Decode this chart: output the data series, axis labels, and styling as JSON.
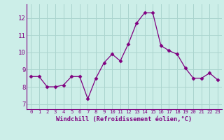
{
  "x": [
    0,
    1,
    2,
    3,
    4,
    5,
    6,
    7,
    8,
    9,
    10,
    11,
    12,
    13,
    14,
    15,
    16,
    17,
    18,
    19,
    20,
    21,
    22,
    23
  ],
  "y": [
    8.6,
    8.6,
    8.0,
    8.0,
    8.1,
    8.6,
    8.6,
    7.3,
    8.5,
    9.4,
    9.9,
    9.5,
    10.5,
    11.7,
    12.3,
    12.3,
    10.4,
    10.1,
    9.9,
    9.1,
    8.5,
    8.5,
    8.8,
    8.4
  ],
  "line_color": "#800080",
  "marker": "D",
  "marker_size": 2.5,
  "bg_color": "#cceee8",
  "grid_color": "#aad4ce",
  "xlabel": "Windchill (Refroidissement éolien,°C)",
  "xlabel_color": "#800080",
  "ylabel_ticks": [
    7,
    8,
    9,
    10,
    11,
    12
  ],
  "ylim": [
    6.7,
    12.8
  ],
  "xlim": [
    -0.5,
    23.5
  ],
  "tick_color": "#800080",
  "xfontsize": 5.2,
  "yfontsize": 6.5,
  "xlabel_fontsize": 6.2
}
